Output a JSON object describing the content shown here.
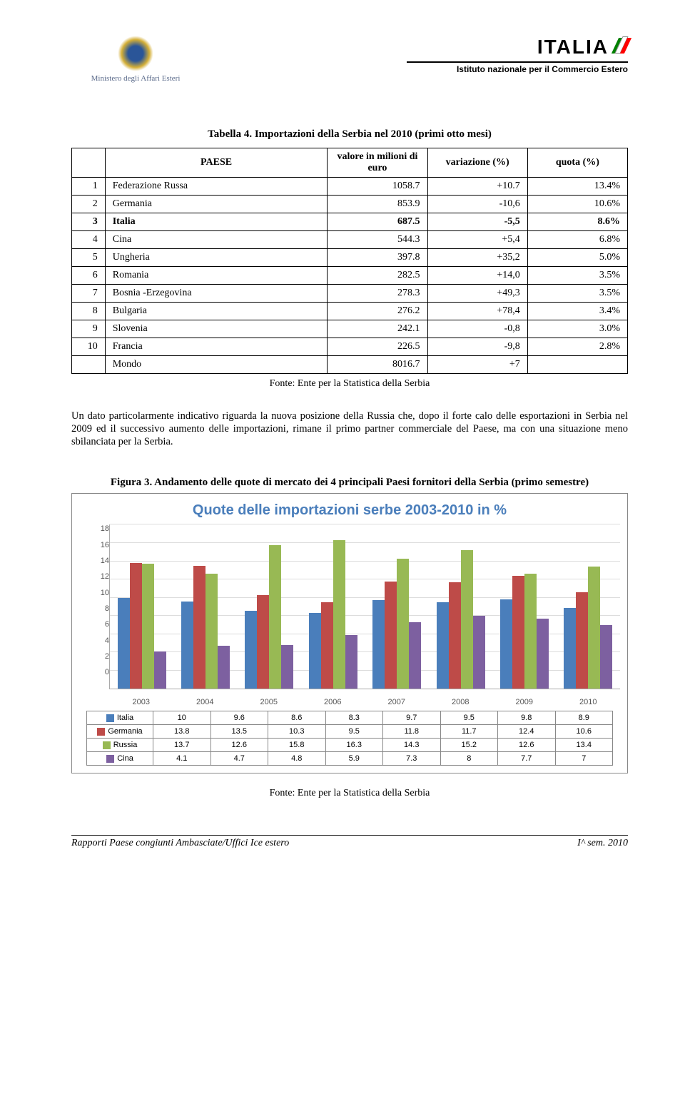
{
  "header": {
    "ministry": "Ministero degli Affari Esteri",
    "italia": "ITALIA",
    "istituto": "Istituto nazionale per il Commercio Estero"
  },
  "table4": {
    "title": "Tabella 4. Importazioni della Serbia nel 2010 (primi otto mesi)",
    "columns": {
      "rank": "",
      "country": "PAESE",
      "value": "valore in milioni di euro",
      "variation": "variazione (%)",
      "quota": "quota (%)"
    },
    "rows": [
      {
        "rank": "1",
        "country": "Federazione Russa",
        "value": "1058.7",
        "variation": "+10.7",
        "quota": "13.4%",
        "bold": false
      },
      {
        "rank": "2",
        "country": "Germania",
        "value": "853.9",
        "variation": "-10,6",
        "quota": "10.6%",
        "bold": false
      },
      {
        "rank": "3",
        "country": "Italia",
        "value": "687.5",
        "variation": "-5,5",
        "quota": "8.6%",
        "bold": true
      },
      {
        "rank": "4",
        "country": "Cina",
        "value": "544.3",
        "variation": "+5,4",
        "quota": "6.8%",
        "bold": false
      },
      {
        "rank": "5",
        "country": "Ungheria",
        "value": "397.8",
        "variation": "+35,2",
        "quota": "5.0%",
        "bold": false
      },
      {
        "rank": "6",
        "country": "Romania",
        "value": "282.5",
        "variation": "+14,0",
        "quota": "3.5%",
        "bold": false
      },
      {
        "rank": "7",
        "country": "Bosnia -Erzegovina",
        "value": "278.3",
        "variation": "+49,3",
        "quota": "3.5%",
        "bold": false
      },
      {
        "rank": "8",
        "country": "Bulgaria",
        "value": "276.2",
        "variation": "+78,4",
        "quota": "3.4%",
        "bold": false
      },
      {
        "rank": "9",
        "country": "Slovenia",
        "value": "242.1",
        "variation": "-0,8",
        "quota": "3.0%",
        "bold": false
      },
      {
        "rank": "10",
        "country": "Francia",
        "value": "226.5",
        "variation": "-9,8",
        "quota": "2.8%",
        "bold": false
      },
      {
        "rank": "",
        "country": "Mondo",
        "value": "8016.7",
        "variation": "+7",
        "quota": "",
        "bold": false
      }
    ],
    "source": "Fonte: Ente per la Statistica della Serbia"
  },
  "paragraph": "Un dato particolarmente indicativo riguarda la nuova posizione della Russia che, dopo il forte calo delle esportazioni in Serbia nel 2009 ed il successivo aumento delle importazioni, rimane il primo partner commerciale del Paese, ma con una situazione meno sbilanciata per la Serbia.",
  "figure3": {
    "title": "Figura 3. Andamento delle quote di mercato dei 4 principali Paesi fornitori della Serbia (primo semestre)",
    "chart_title": "Quote delle importazioni serbe 2003-2010 in %",
    "years": [
      "2003",
      "2004",
      "2005",
      "2006",
      "2007",
      "2008",
      "2009",
      "2010"
    ],
    "y_max": 18,
    "y_step": 2,
    "series": [
      {
        "name": "Italia",
        "color": "#4a7ebb",
        "values": [
          10,
          9.6,
          8.6,
          8.3,
          9.7,
          9.5,
          9.8,
          8.9
        ]
      },
      {
        "name": "Germania",
        "color": "#be4b48",
        "values": [
          13.8,
          13.5,
          10.3,
          9.5,
          11.8,
          11.7,
          12.4,
          10.6
        ]
      },
      {
        "name": "Russia",
        "color": "#98b954",
        "values": [
          13.7,
          12.6,
          15.8,
          16.3,
          14.3,
          15.2,
          12.6,
          13.4
        ]
      },
      {
        "name": "Cina",
        "color": "#7d60a0",
        "values": [
          4.1,
          4.7,
          4.8,
          5.9,
          7.3,
          8,
          7.7,
          7
        ]
      }
    ],
    "source": "Fonte: Ente per la Statistica della Serbia"
  },
  "footer": {
    "left": "Rapporti Paese congiunti Ambasciate/Uffici Ice estero",
    "right": "I^ sem. 2010"
  }
}
